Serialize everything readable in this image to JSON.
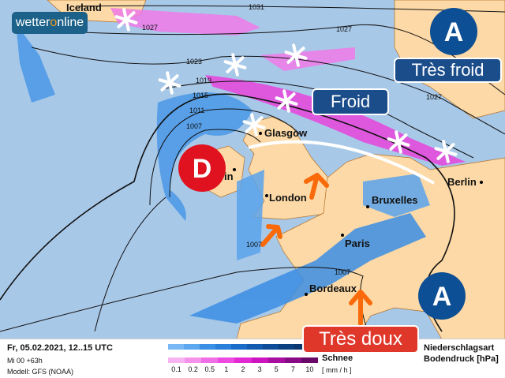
{
  "brand": {
    "logo_text_a": "wetter",
    "logo_text_o": "o",
    "logo_text_b": "nline"
  },
  "cities": {
    "iceland": "Iceland",
    "glasgow": "Glasgow",
    "dublin": "in",
    "london": "London",
    "bruxelles": "Bruxelles",
    "berlin": "Berlin",
    "paris": "Paris",
    "bordeaux": "Bordeaux"
  },
  "isobars": {
    "i1031": "1031",
    "i1027a": "1027",
    "i1027b": "1027",
    "i1027c": "1027",
    "i1023": "1023",
    "i1019": "1019",
    "i1015": "1015",
    "i1011": "1011",
    "i1007a": "1007",
    "i1007b": "1007",
    "i1007c": "1007"
  },
  "pressure_systems": {
    "high_north": "A",
    "high_south": "A",
    "low": "D"
  },
  "labels": {
    "tres_froid": "Très froid",
    "froid": "Froid",
    "tres_doux": "Très doux"
  },
  "colors": {
    "sea": "#a8c8e8",
    "land": "#fcd9a6",
    "high": "#0d4f94",
    "low": "#e0121f",
    "label_blue": "#1b4d8a",
    "label_red": "#e0372b",
    "warm_arrow": "#fa6a0a"
  },
  "legend": {
    "date": "Fr, 05.02.2021, 12..15 UTC",
    "run": "Mi 00 +63h",
    "model": "Modell: GFS (NOAA)",
    "rain_colors": [
      "#7ab8f5",
      "#5ea8ef",
      "#3b90e6",
      "#2a7fdb",
      "#1b6cc8",
      "#125bb0",
      "#0c4c98",
      "#0a3f80",
      "#0a3670"
    ],
    "snow_colors": [
      "#f8b4f2",
      "#f592ec",
      "#f06ee6",
      "#ec4ae0",
      "#e22ad4",
      "#cc15c0",
      "#a80ea0",
      "#880a84",
      "#6a0868"
    ],
    "scale": [
      "0.1",
      "0.2",
      "0.5",
      "1",
      "2",
      "3",
      "5",
      "7",
      "10"
    ],
    "snow": "Schnee",
    "unit": "[ mm / h ]",
    "type_title": "Niederschlagsart",
    "pressure_title": "Bodendruck [hPa]"
  }
}
